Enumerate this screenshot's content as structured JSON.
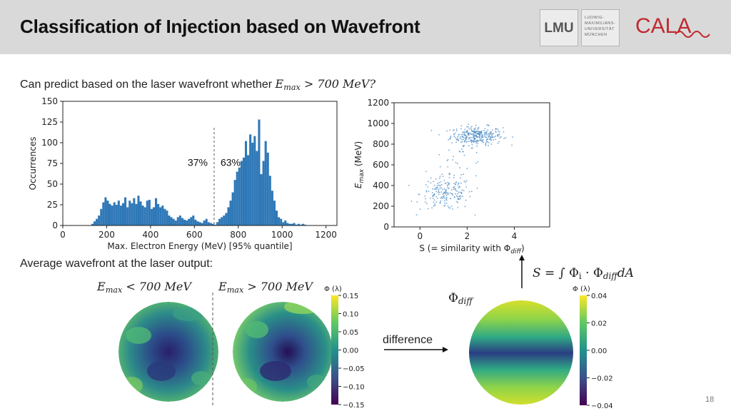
{
  "slide": {
    "title": "Classification of Injection based on Wavefront",
    "page_number": "18"
  },
  "logos": {
    "lmu_mark": "LMU",
    "lmu_name_lines": [
      "LUDWIG-",
      "MAXIMILIANS-",
      "UNIVERSITÄT",
      "MÜNCHEN"
    ],
    "cala": "CALA"
  },
  "text": {
    "intro": "Can predict based on the laser wavefront whether",
    "intro_math": {
      "e": "E",
      "sub": "max",
      "rest": " > 700 ",
      "unit": "MeV",
      "q": "?"
    },
    "avg_wavefront": "Average wavefront at the laser output:",
    "label_lt": {
      "e": "E",
      "sub": "max",
      "rest": " < 700 ",
      "unit": "MeV"
    },
    "label_gt": {
      "e": "E",
      "sub": "max",
      "rest": " > 700 ",
      "unit": "MeV"
    },
    "phi_diff": {
      "phi": "Φ",
      "sub": "diff"
    },
    "formula": {
      "s": "S",
      "eq": " = ∫ Φ",
      "i": "i",
      "dot": " · Φ",
      "sub": "diff",
      "da": "dA"
    },
    "difference": "difference"
  },
  "chart_data": [
    {
      "type": "bar",
      "title": "",
      "xlabel": "Max. Electron Energy (MeV) [95% quantile]",
      "ylabel": "Occurrences",
      "xlim": [
        0,
        1250
      ],
      "ylim": [
        0,
        150
      ],
      "xticks": [
        0,
        200,
        400,
        600,
        800,
        1000,
        1200
      ],
      "yticks": [
        0,
        25,
        50,
        75,
        100,
        125,
        150
      ],
      "bin_width": 10,
      "bin_starts": [
        130,
        140,
        150,
        160,
        170,
        180,
        190,
        200,
        210,
        220,
        230,
        240,
        250,
        260,
        270,
        280,
        290,
        300,
        310,
        320,
        330,
        340,
        350,
        360,
        370,
        380,
        390,
        400,
        410,
        420,
        430,
        440,
        450,
        460,
        470,
        480,
        490,
        500,
        510,
        520,
        530,
        540,
        550,
        560,
        570,
        580,
        590,
        600,
        610,
        620,
        630,
        640,
        650,
        660,
        670,
        680,
        690,
        700,
        710,
        720,
        730,
        740,
        750,
        760,
        770,
        780,
        790,
        800,
        810,
        820,
        830,
        840,
        850,
        860,
        870,
        880,
        890,
        900,
        910,
        920,
        930,
        940,
        950,
        960,
        970,
        980,
        990,
        1000,
        1010,
        1020,
        1030,
        1040,
        1050,
        1060,
        1070,
        1080,
        1090,
        1100
      ],
      "values": [
        2,
        5,
        8,
        12,
        20,
        28,
        34,
        30,
        26,
        24,
        28,
        25,
        30,
        24,
        27,
        34,
        22,
        30,
        27,
        33,
        26,
        36,
        29,
        24,
        22,
        30,
        31,
        20,
        22,
        33,
        26,
        22,
        24,
        20,
        18,
        12,
        10,
        8,
        6,
        10,
        12,
        9,
        7,
        6,
        8,
        10,
        12,
        7,
        5,
        4,
        3,
        6,
        8,
        4,
        3,
        2,
        1,
        4,
        8,
        10,
        12,
        15,
        22,
        30,
        40,
        55,
        65,
        70,
        78,
        82,
        102,
        85,
        110,
        100,
        108,
        90,
        128,
        62,
        78,
        102,
        88,
        60,
        42,
        30,
        18,
        10,
        8,
        4,
        6,
        3,
        2,
        2,
        3,
        1,
        2,
        1,
        2,
        1
      ],
      "threshold": 690,
      "annotations": [
        "37%",
        "63%"
      ]
    },
    {
      "type": "scatter",
      "xlabel": "S (= similarity with Φ",
      "xlabel_sub": "diff",
      "ylabel": "E",
      "ylabel_sub": "max",
      "ylabel_unit": " (MeV)",
      "xlim": [
        -1.1,
        5.5
      ],
      "ylim": [
        0,
        1200
      ],
      "xticks": [
        0,
        2,
        4
      ],
      "yticks": [
        0,
        200,
        400,
        600,
        800,
        1000,
        1200
      ],
      "clusters": [
        {
          "name": "high",
          "center": [
            2.4,
            880
          ],
          "spread": [
            0.55,
            45
          ],
          "count": 300
        },
        {
          "name": "low",
          "center": [
            1.1,
            320
          ],
          "spread": [
            0.55,
            80
          ],
          "count": 180
        },
        {
          "name": "mid",
          "center": [
            1.6,
            560
          ],
          "spread": [
            0.6,
            120
          ],
          "count": 40
        }
      ]
    },
    {
      "type": "heatmap",
      "name": "avg-wavefront",
      "colorbar_label": "Φ (λ)",
      "colorbar_range": [
        -0.15,
        0.15
      ],
      "colorbar_ticks": [
        "0.15",
        "0.10",
        "0.05",
        "0.00",
        "−0.05",
        "−0.10",
        "−0.15"
      ]
    },
    {
      "type": "heatmap",
      "name": "phi-diff",
      "colorbar_label": "Φ (λ)",
      "colorbar_range": [
        -0.04,
        0.04
      ],
      "colorbar_ticks": [
        "0.04",
        "0.02",
        "0.00",
        "−0.02",
        "−0.04"
      ]
    }
  ],
  "colors": {
    "bar": "#2f78b7",
    "scatter": "#4a8ac4",
    "header_bg": "#d9d9d9",
    "cala_red": "#c0292e"
  },
  "icons": [
    "arrow-right-icon",
    "arrow-up-icon"
  ]
}
